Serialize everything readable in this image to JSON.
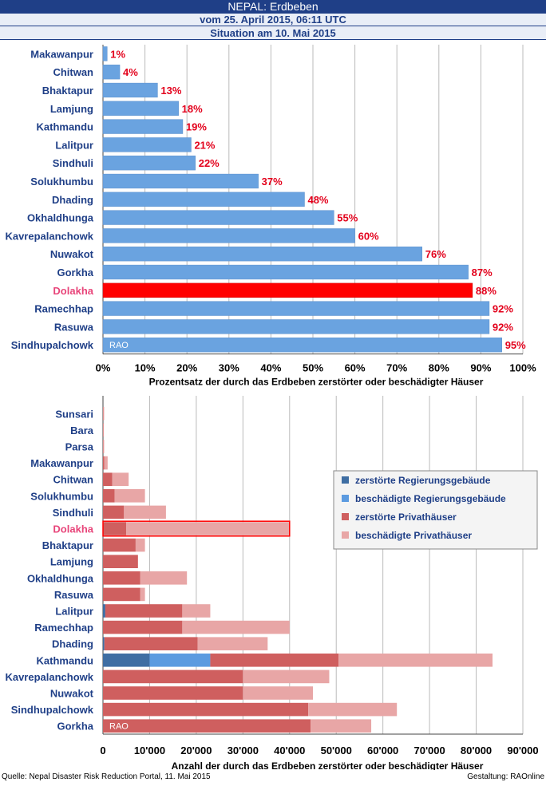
{
  "header": {
    "title": "NEPAL: Erdbeben",
    "subtitle": "vom 25. April 2015, 06:11 UTC",
    "situation": "Situation am 10. Mai 2015"
  },
  "chart_data": [
    {
      "type": "bar",
      "orientation": "horizontal",
      "xlabel": "Prozentsatz der durch das Erdbeben zerstörter oder beschädigter Häuser",
      "xlim": [
        0,
        100
      ],
      "ticks": [
        "0%",
        "10%",
        "20%",
        "30%",
        "40%",
        "50%",
        "60%",
        "70%",
        "80%",
        "90%",
        "100%"
      ],
      "categories": [
        "Makawanpur",
        "Chitwan",
        "Bhaktapur",
        "Lamjung",
        "Kathmandu",
        "Lalitpur",
        "Sindhuli",
        "Solukhumbu",
        "Dhading",
        "Okhaldhunga",
        "Kavrepalanchowk",
        "Nuwakot",
        "Gorkha",
        "Dolakha",
        "Ramechhap",
        "Rasuwa",
        "Sindhupalchowk"
      ],
      "values": [
        1,
        4,
        13,
        18,
        19,
        21,
        22,
        37,
        48,
        55,
        60,
        76,
        87,
        88,
        92,
        92,
        95
      ],
      "value_labels": [
        "1%",
        "4%",
        "13%",
        "18%",
        "19%",
        "21%",
        "22%",
        "37%",
        "48%",
        "55%",
        "60%",
        "76%",
        "87%",
        "88%",
        "92%",
        "92%",
        "95%"
      ],
      "highlight": "Dolakha",
      "colors": {
        "bar": "#6aa3e0",
        "highlight": "#ff0000",
        "value_label": "#e3001b",
        "category": "#1f3f87",
        "highlight_label": "#e8457a"
      },
      "watermark": "RAO"
    },
    {
      "type": "bar",
      "orientation": "horizontal",
      "stacked": true,
      "xlabel": "Anzahl der durch das Erdbeben zerstörter oder beschädigter Häuser",
      "xlim": [
        0,
        90000
      ],
      "ticks": [
        "0",
        "10'000",
        "20'000",
        "30'000",
        "40'000",
        "50'000",
        "60'000",
        "70'000",
        "80'000",
        "90'000"
      ],
      "categories": [
        "Sunsari",
        "Bara",
        "Parsa",
        "Makawanpur",
        "Chitwan",
        "Solukhumbu",
        "Sindhuli",
        "Dolakha",
        "Bhaktapur",
        "Lamjung",
        "Okhaldhunga",
        "Rasuwa",
        "Lalitpur",
        "Ramechhap",
        "Dhading",
        "Kathmandu",
        "Kavrepalanchowk",
        "Nuwakot",
        "Sindhupalchowk",
        "Gorkha"
      ],
      "highlight": "Dolakha",
      "series": [
        {
          "name": "zerstörte Regierungsgebäude",
          "color": "#3f6ea3",
          "values": [
            0,
            0,
            0,
            0,
            0,
            0,
            0,
            0,
            0,
            0,
            0,
            0,
            500,
            0,
            300,
            10000,
            0,
            0,
            0,
            0
          ]
        },
        {
          "name": "beschädigte Regierungsgebäude",
          "color": "#5c9be0",
          "values": [
            0,
            0,
            0,
            0,
            0,
            0,
            0,
            0,
            0,
            0,
            0,
            0,
            0,
            0,
            0,
            13000,
            0,
            0,
            0,
            0
          ]
        },
        {
          "name": "zerstörte Privathäuser",
          "color": "#cf5f5f",
          "values": [
            50,
            50,
            50,
            300,
            2000,
            2500,
            4500,
            5000,
            7000,
            7500,
            8000,
            8000,
            16500,
            17000,
            20000,
            27500,
            30000,
            30000,
            44000,
            44500
          ]
        },
        {
          "name": "beschädigte Privathäuser",
          "color": "#e8a6a6",
          "values": [
            200,
            100,
            200,
            700,
            3500,
            6500,
            9000,
            35000,
            2000,
            0,
            10000,
            1000,
            6000,
            23000,
            15000,
            33000,
            18500,
            15000,
            19000,
            13000
          ]
        }
      ],
      "watermark": "RAO"
    }
  ],
  "footer": {
    "source": "Quelle:  Nepal Disaster Risk Reduction Portal, 11. Mai  2015",
    "credit": "Gestaltung: RAOnline"
  }
}
